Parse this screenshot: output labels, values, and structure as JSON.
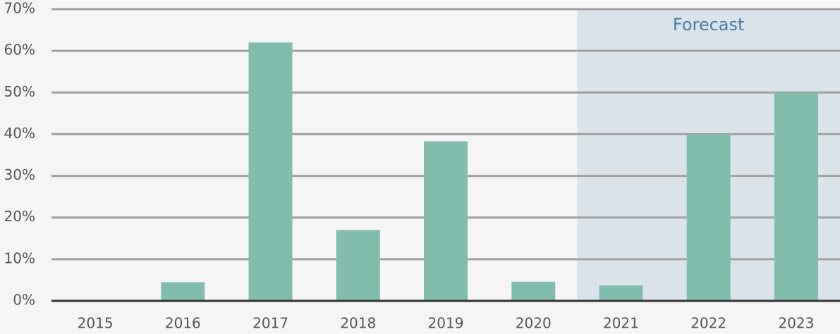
{
  "chart_data": {
    "type": "bar",
    "categories": [
      "2015",
      "2016",
      "2017",
      "2018",
      "2019",
      "2020",
      "2021",
      "2022",
      "2023"
    ],
    "values": [
      0,
      4.5,
      62,
      17,
      38.3,
      4.6,
      3.7,
      40,
      50
    ],
    "color": "#82bcac",
    "ylim": [
      0,
      70
    ],
    "yticks": [
      {
        "value": 0,
        "label": "0%"
      },
      {
        "value": 10,
        "label": "10%"
      },
      {
        "value": 20,
        "label": "20%"
      },
      {
        "value": 30,
        "label": "30%"
      },
      {
        "value": 40,
        "label": "40%"
      },
      {
        "value": 50,
        "label": "50%"
      },
      {
        "value": 60,
        "label": "60%"
      },
      {
        "value": 70,
        "label": "70%"
      }
    ],
    "grid": true,
    "annotation": "Forecast",
    "forecast_from": "2021",
    "forecast_color": "#dbe3ea"
  }
}
